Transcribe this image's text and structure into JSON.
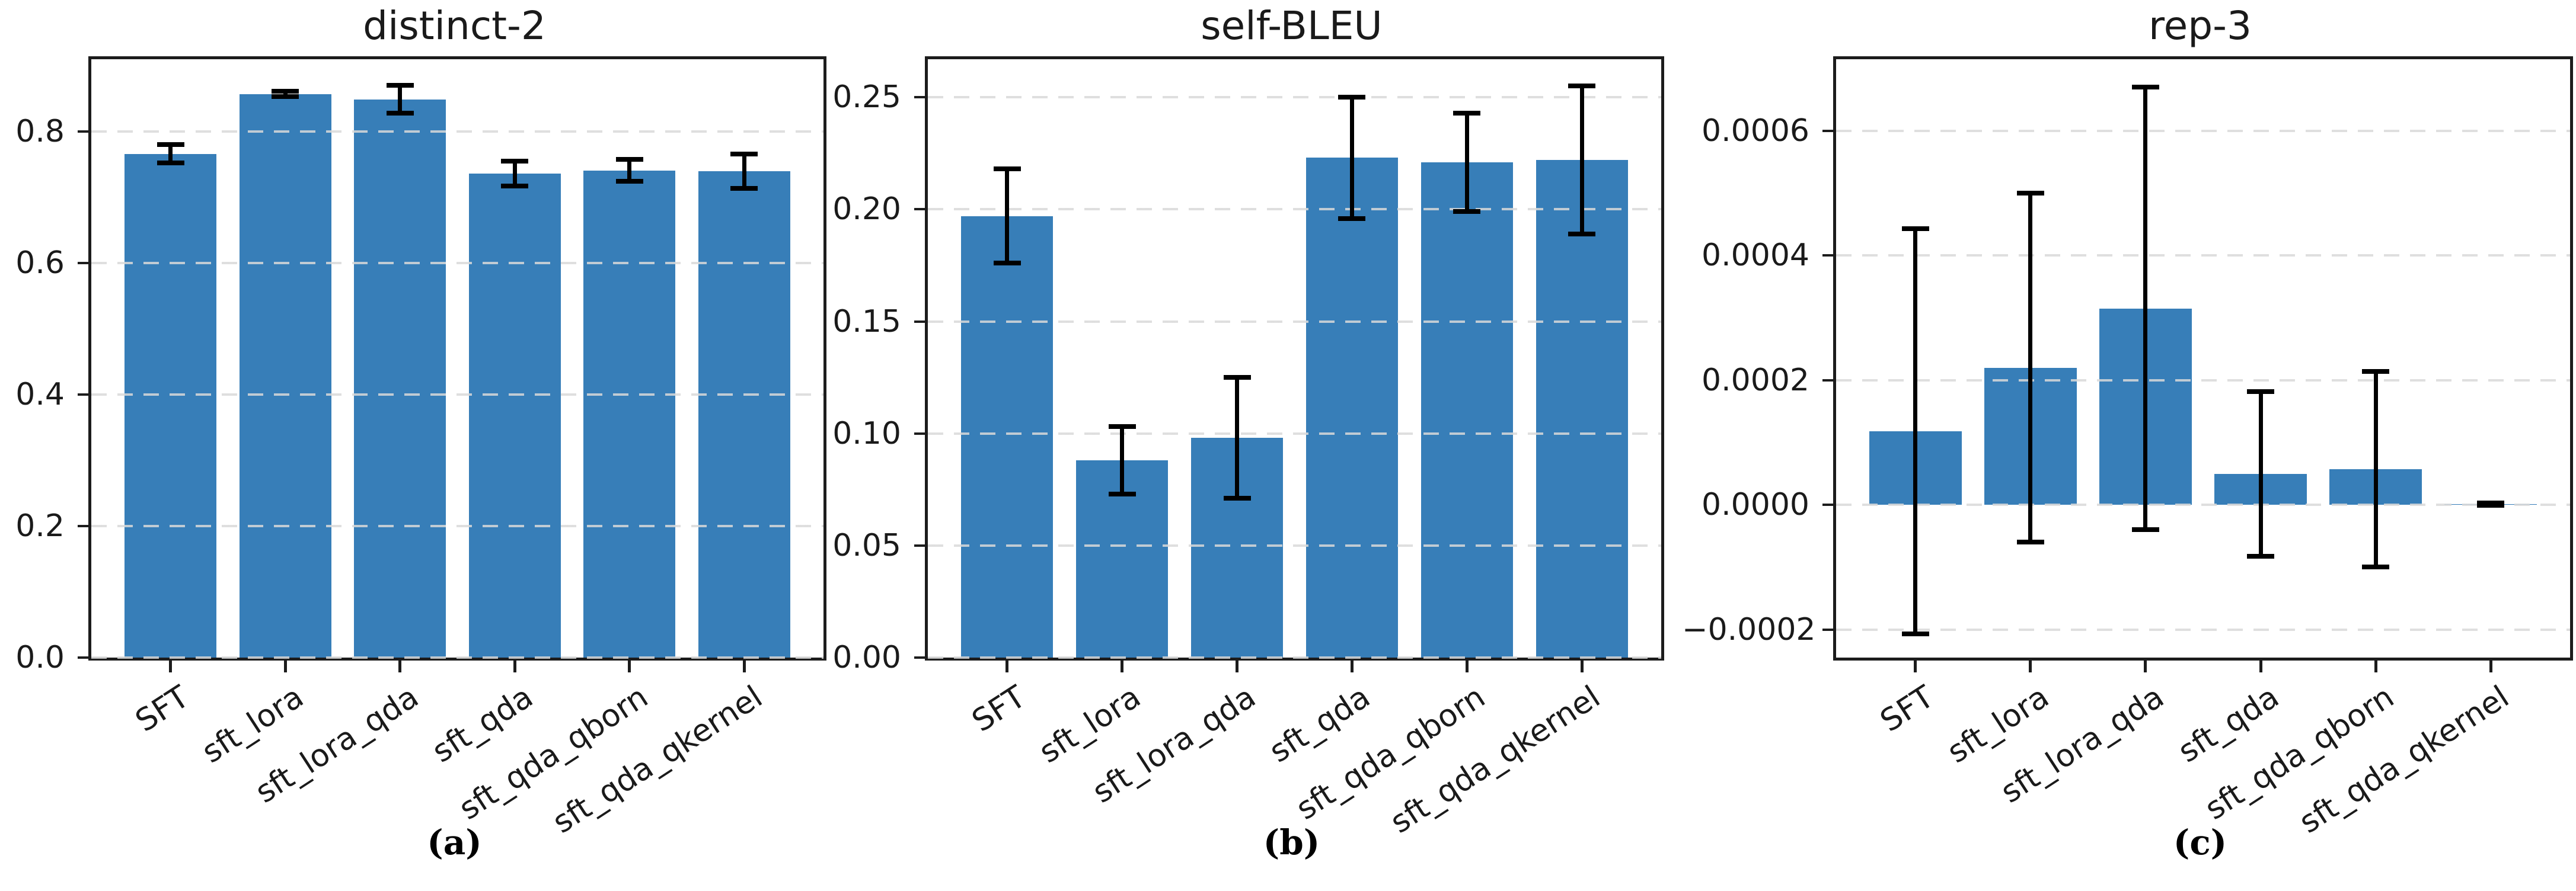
{
  "figure": {
    "background": "#ffffff",
    "bar_color": "#377eb8",
    "error_color": "#000000",
    "grid_color": "#d9d9d9",
    "captions": [
      "(a)",
      "(b)",
      "(c)"
    ]
  },
  "chart_data": [
    {
      "type": "bar",
      "title": "distinct-2",
      "categories": [
        "SFT",
        "sft_lora",
        "sft_lora_qda",
        "sft_qda",
        "sft_qda_qborn",
        "sft_qda_qkernel"
      ],
      "values": [
        0.766,
        0.857,
        0.849,
        0.736,
        0.741,
        0.74
      ],
      "errors": [
        0.014,
        0.004,
        0.021,
        0.019,
        0.017,
        0.026
      ],
      "ylim": [
        0,
        0.91
      ],
      "yticks": [
        0.0,
        0.2,
        0.4,
        0.6,
        0.8
      ],
      "ytick_labels": [
        "0.0",
        "0.2",
        "0.4",
        "0.6",
        "0.8"
      ],
      "grid": "horizontal-dashed",
      "legend_position": "none"
    },
    {
      "type": "bar",
      "title": "self-BLEU",
      "categories": [
        "SFT",
        "sft_lora",
        "sft_lora_qda",
        "sft_qda",
        "sft_qda_qborn",
        "sft_qda_qkernel"
      ],
      "values": [
        0.197,
        0.088,
        0.098,
        0.223,
        0.221,
        0.222
      ],
      "errors": [
        0.021,
        0.015,
        0.027,
        0.027,
        0.022,
        0.033
      ],
      "ylim": [
        0,
        0.267
      ],
      "yticks": [
        0.0,
        0.05,
        0.1,
        0.15,
        0.2,
        0.25
      ],
      "ytick_labels": [
        "0.00",
        "0.05",
        "0.10",
        "0.15",
        "0.20",
        "0.25"
      ],
      "grid": "horizontal-dashed",
      "legend_position": "none"
    },
    {
      "type": "bar",
      "title": "rep-3",
      "categories": [
        "SFT",
        "sft_lora",
        "sft_lora_qda",
        "sft_qda",
        "sft_qda_qborn",
        "sft_qda_qkernel"
      ],
      "values": [
        0.000118,
        0.00022,
        0.000315,
        5e-05,
        5.7e-05,
        1e-06
      ],
      "errors": [
        0.000325,
        0.00028,
        0.000355,
        0.000132,
        0.000157,
        2e-06
      ],
      "ylim": [
        -0.000245,
        0.000715
      ],
      "yticks": [
        -0.0002,
        0.0,
        0.0002,
        0.0004,
        0.0006
      ],
      "ytick_labels": [
        "−0.0002",
        "0.0000",
        "0.0002",
        "0.0004",
        "0.0006"
      ],
      "grid": "horizontal-dashed",
      "legend_position": "none"
    }
  ]
}
